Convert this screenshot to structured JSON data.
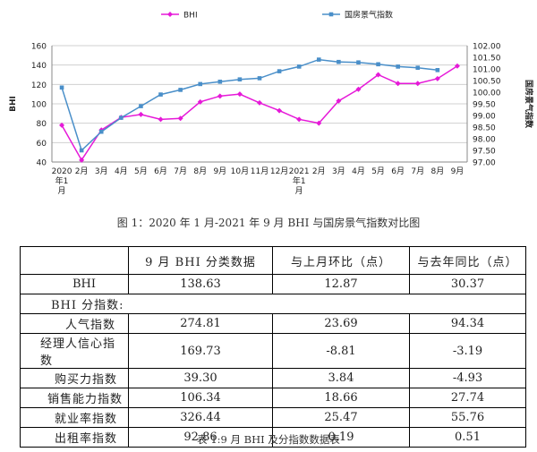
{
  "chart_data": {
    "type": "line",
    "categories": [
      "2020年1月",
      "2月",
      "3月",
      "4月",
      "5月",
      "6月",
      "7月",
      "8月",
      "9月",
      "10月",
      "11月",
      "12月",
      "2021年1月",
      "2月",
      "3月",
      "4月",
      "5月",
      "6月",
      "7月",
      "8月",
      "9月"
    ],
    "x_tick_labels": [
      [
        "2020",
        "年1",
        "月"
      ],
      [
        "2月"
      ],
      [
        "3月"
      ],
      [
        "4月"
      ],
      [
        "5月"
      ],
      [
        "6月"
      ],
      [
        "7月"
      ],
      [
        "8月"
      ],
      [
        "9月"
      ],
      [
        "10月"
      ],
      [
        "11月"
      ],
      [
        "12月"
      ],
      [
        "2021",
        "年1",
        "月"
      ],
      [
        "2月"
      ],
      [
        "3月"
      ],
      [
        "4月"
      ],
      [
        "5月"
      ],
      [
        "6月"
      ],
      [
        "7月"
      ],
      [
        "8月"
      ],
      [
        "9月"
      ]
    ],
    "series": [
      {
        "name": "BHI",
        "axis": "left",
        "color": "#e619d8",
        "values": [
          78,
          42,
          73,
          86,
          89,
          84,
          85,
          102,
          108,
          110,
          101,
          93,
          84,
          80,
          103,
          115,
          130,
          121,
          121,
          126,
          139
        ]
      },
      {
        "name": "国房景气指数",
        "axis": "right",
        "color": "#4a8fc9",
        "values": [
          100.2,
          97.5,
          98.3,
          98.9,
          99.4,
          99.9,
          100.1,
          100.35,
          100.45,
          100.55,
          100.6,
          100.9,
          101.1,
          101.4,
          101.3,
          101.28,
          101.2,
          101.1,
          101.05,
          100.95,
          null
        ]
      }
    ],
    "ylabel": "BHI",
    "ylabel_right": "国房景气指数",
    "ylim": [
      40,
      160
    ],
    "ylim_right": [
      97.0,
      102.0
    ],
    "yticks": [
      "40",
      "60",
      "80",
      "100",
      "120",
      "140",
      "160"
    ],
    "yticks_right": [
      "97.00",
      "97.50",
      "98.00",
      "98.50",
      "99.00",
      "99.50",
      "100.00",
      "100.50",
      "101.00",
      "101.50",
      "102.00"
    ],
    "grid": true,
    "legend_position": "top"
  },
  "figure_caption": "图 1：2020 年 1 月-2021 年 9 月 BHI 与国房景气指数对比图",
  "table": {
    "headers": [
      "",
      "9 月 BHI 分类数据",
      "与上月环比（点）",
      "与去年同比（点）"
    ],
    "bhi_row": {
      "label": "BHI",
      "values": [
        "138.63",
        "12.87",
        "30.37"
      ]
    },
    "section_label": "BHI 分指数:",
    "rows": [
      {
        "label": "人气指数",
        "values": [
          "274.81",
          "23.69",
          "94.34"
        ]
      },
      {
        "label": "经理人信心指数",
        "values": [
          "169.73",
          "-8.81",
          "-3.19"
        ]
      },
      {
        "label": "购买力指数",
        "values": [
          "39.30",
          "3.84",
          "-4.93"
        ]
      },
      {
        "label": "销售能力指数",
        "values": [
          "106.34",
          "18.66",
          "27.74"
        ]
      },
      {
        "label": "就业率指数",
        "values": [
          "326.44",
          "25.47",
          "55.76"
        ]
      },
      {
        "label": "出租率指数",
        "values": [
          "92.86",
          "0.19",
          "0.51"
        ]
      }
    ]
  },
  "table_caption": "表 1:9 月 BHI 及分指数数据表"
}
